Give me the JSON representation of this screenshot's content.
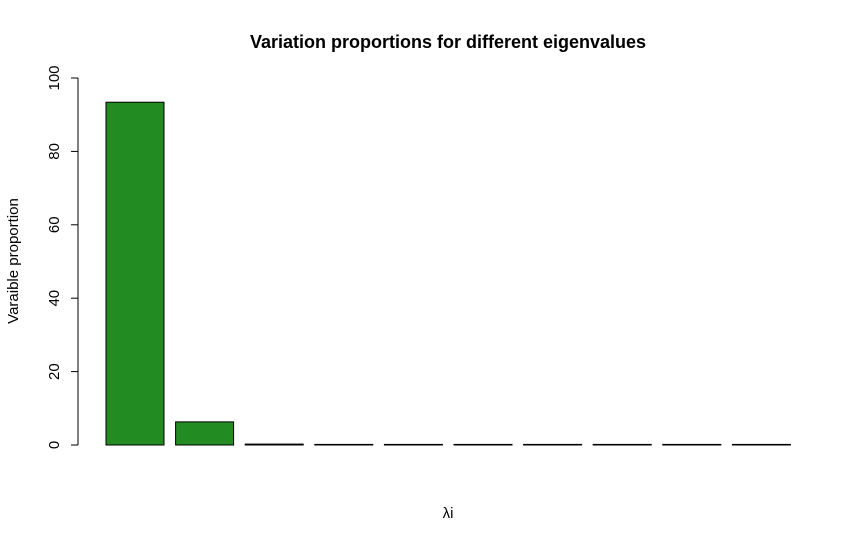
{
  "chart_data": {
    "type": "bar",
    "title": "Variation proportions for different eigenvalues",
    "xlabel": "λi",
    "ylabel": "Varaible proportion",
    "ylim": [
      0,
      100
    ],
    "yticks": [
      0,
      20,
      40,
      60,
      80,
      100
    ],
    "grid": false,
    "legend": "none",
    "bar_color": "#228B22",
    "bar_border_color": "#000000",
    "values": [
      93.4,
      6.3,
      0.25,
      0.12,
      0.08,
      0.05,
      0.03,
      0.02,
      0.01,
      0.01
    ]
  }
}
